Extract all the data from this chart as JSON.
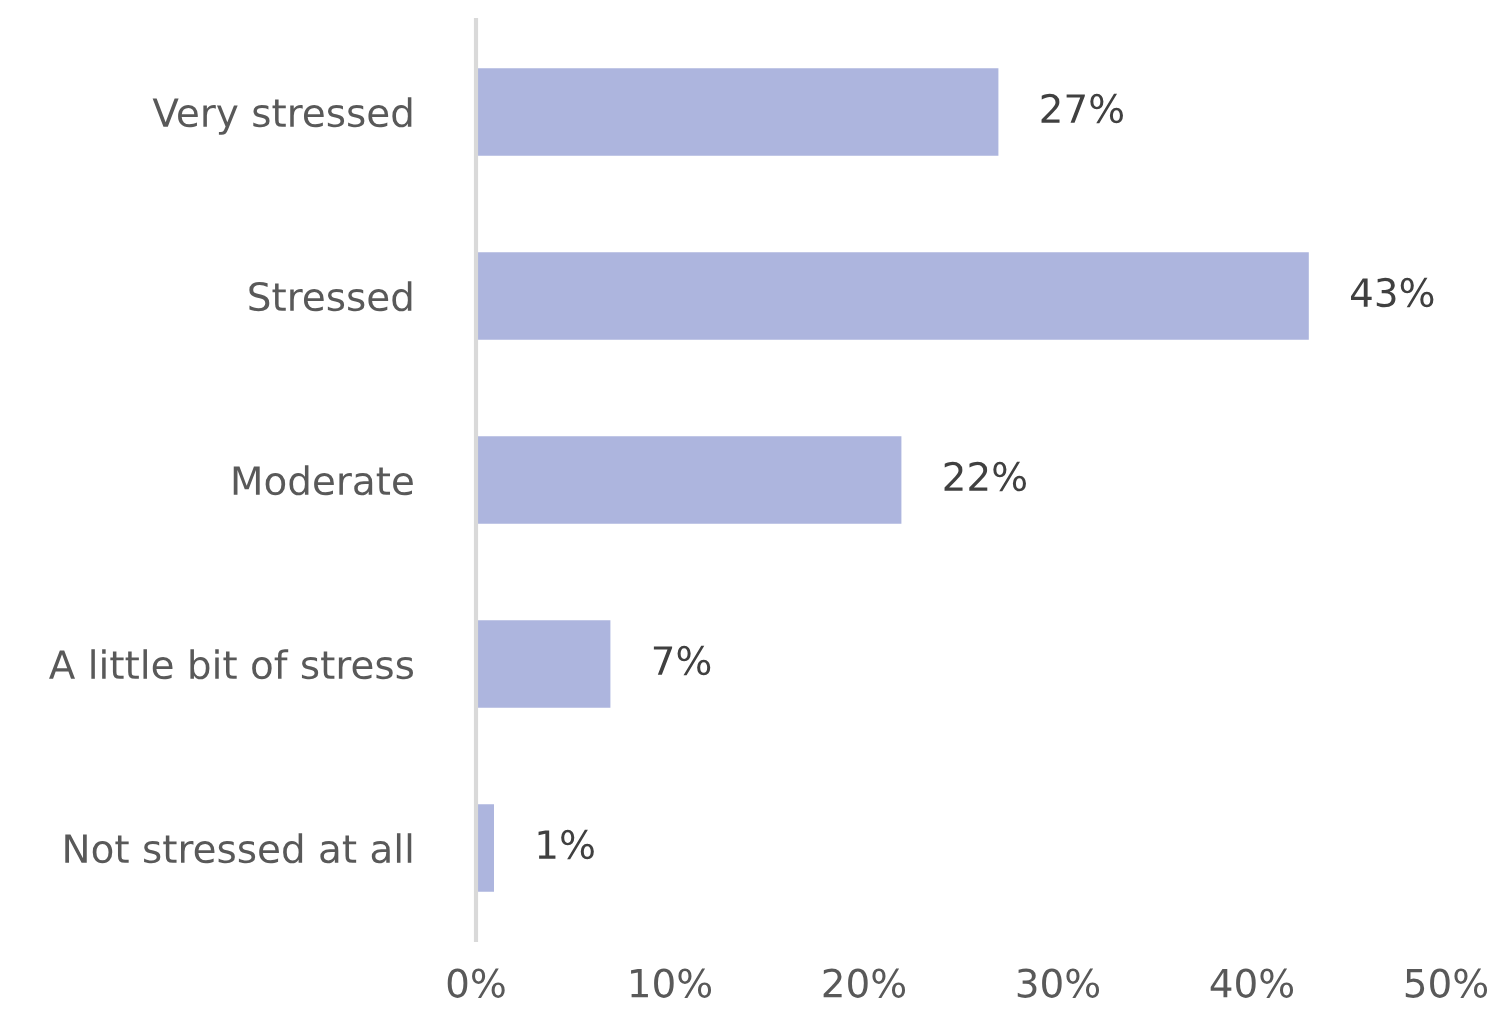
{
  "chart_data": {
    "type": "bar",
    "orientation": "horizontal",
    "categories": [
      "Very stressed",
      "Stressed",
      "Moderate",
      "A little bit of stress",
      "Not stressed at all"
    ],
    "values": [
      27,
      43,
      22,
      7,
      1
    ],
    "value_labels": [
      "27%",
      "43%",
      "22%",
      "7%",
      "1%"
    ],
    "color": "#adb5de",
    "xlim": [
      0,
      50
    ],
    "xticks": [
      {
        "value": 0,
        "label": "0%"
      },
      {
        "value": 10,
        "label": "10%"
      },
      {
        "value": 20,
        "label": "20%"
      },
      {
        "value": 30,
        "label": "30%"
      },
      {
        "value": 40,
        "label": "40%"
      },
      {
        "value": 50,
        "label": "50%"
      }
    ],
    "grid": false,
    "legend": false
  }
}
